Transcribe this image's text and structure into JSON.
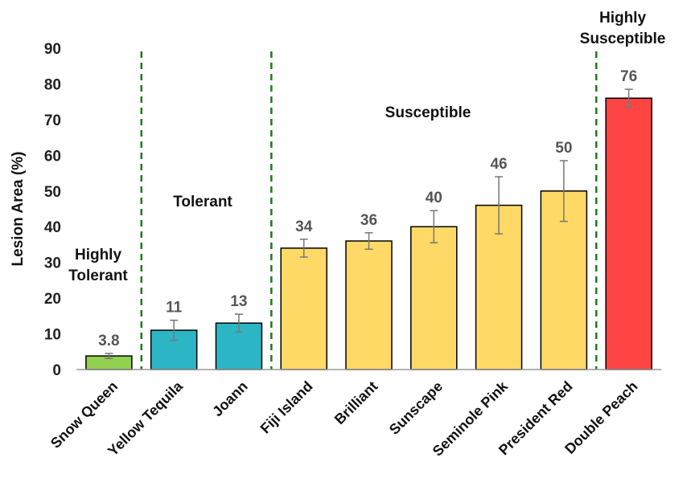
{
  "chart_data": {
    "type": "bar",
    "ylabel": "Lesion Area (%)",
    "xlabel": "",
    "ylim": [
      0,
      90
    ],
    "yticks": [
      0,
      10,
      20,
      30,
      40,
      50,
      60,
      70,
      80,
      90
    ],
    "grid": false,
    "categories": [
      "Snow Queen",
      "Yellow Tequila",
      "Joann",
      "Fiji Island",
      "Brilliant",
      "Sunscape",
      "Seminole Pink",
      "President Red",
      "Double Peach"
    ],
    "values": [
      3.8,
      11,
      13,
      34,
      36,
      40,
      46,
      50,
      76
    ],
    "value_labels": [
      "3.8",
      "11",
      "13",
      "34",
      "36",
      "40",
      "46",
      "50",
      "76"
    ],
    "errors": [
      0.7,
      2.8,
      2.5,
      2.5,
      2.3,
      4.5,
      8.0,
      8.5,
      2.5
    ],
    "bar_groups": [
      "highly-tolerant",
      "tolerant",
      "tolerant",
      "susceptible",
      "susceptible",
      "susceptible",
      "susceptible",
      "susceptible",
      "highly-susceptible"
    ],
    "group_colors": {
      "highly-tolerant": "#92D050",
      "tolerant": "#2BB5C5",
      "susceptible": "#FFD966",
      "highly-susceptible": "#FF4444"
    },
    "group_labels": [
      {
        "id": "highly-tolerant",
        "lines": [
          "Highly",
          "Tolerant"
        ]
      },
      {
        "id": "tolerant",
        "lines": [
          "Tolerant"
        ]
      },
      {
        "id": "susceptible",
        "lines": [
          "Susceptible"
        ]
      },
      {
        "id": "highly-susceptible",
        "lines": [
          "Highly",
          "Susceptible"
        ]
      }
    ],
    "divider_color": "#1E7A1E"
  }
}
